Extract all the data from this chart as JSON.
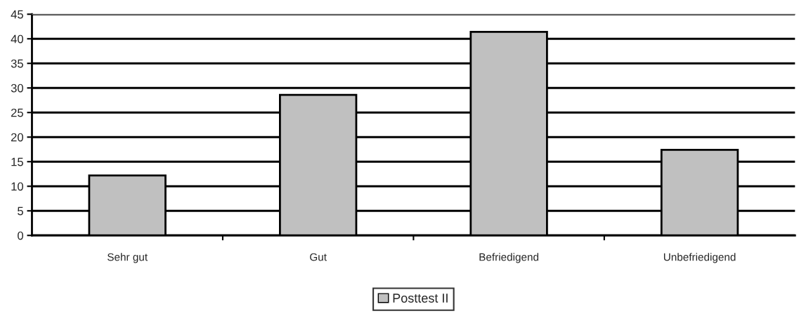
{
  "chart_data": {
    "type": "bar",
    "categories": [
      "Sehr gut",
      "Gut",
      "Befriedigend",
      "Unbefriedigend"
    ],
    "series": [
      {
        "name": "Posttest II",
        "color": "#c0c0c0",
        "values": [
          12.2,
          28.6,
          41.4,
          17.4
        ]
      }
    ],
    "ylim": [
      0,
      45
    ],
    "yticks": [
      0,
      5,
      10,
      15,
      20,
      25,
      30,
      35,
      40,
      45
    ],
    "grid": "y",
    "legend": "bottom"
  }
}
